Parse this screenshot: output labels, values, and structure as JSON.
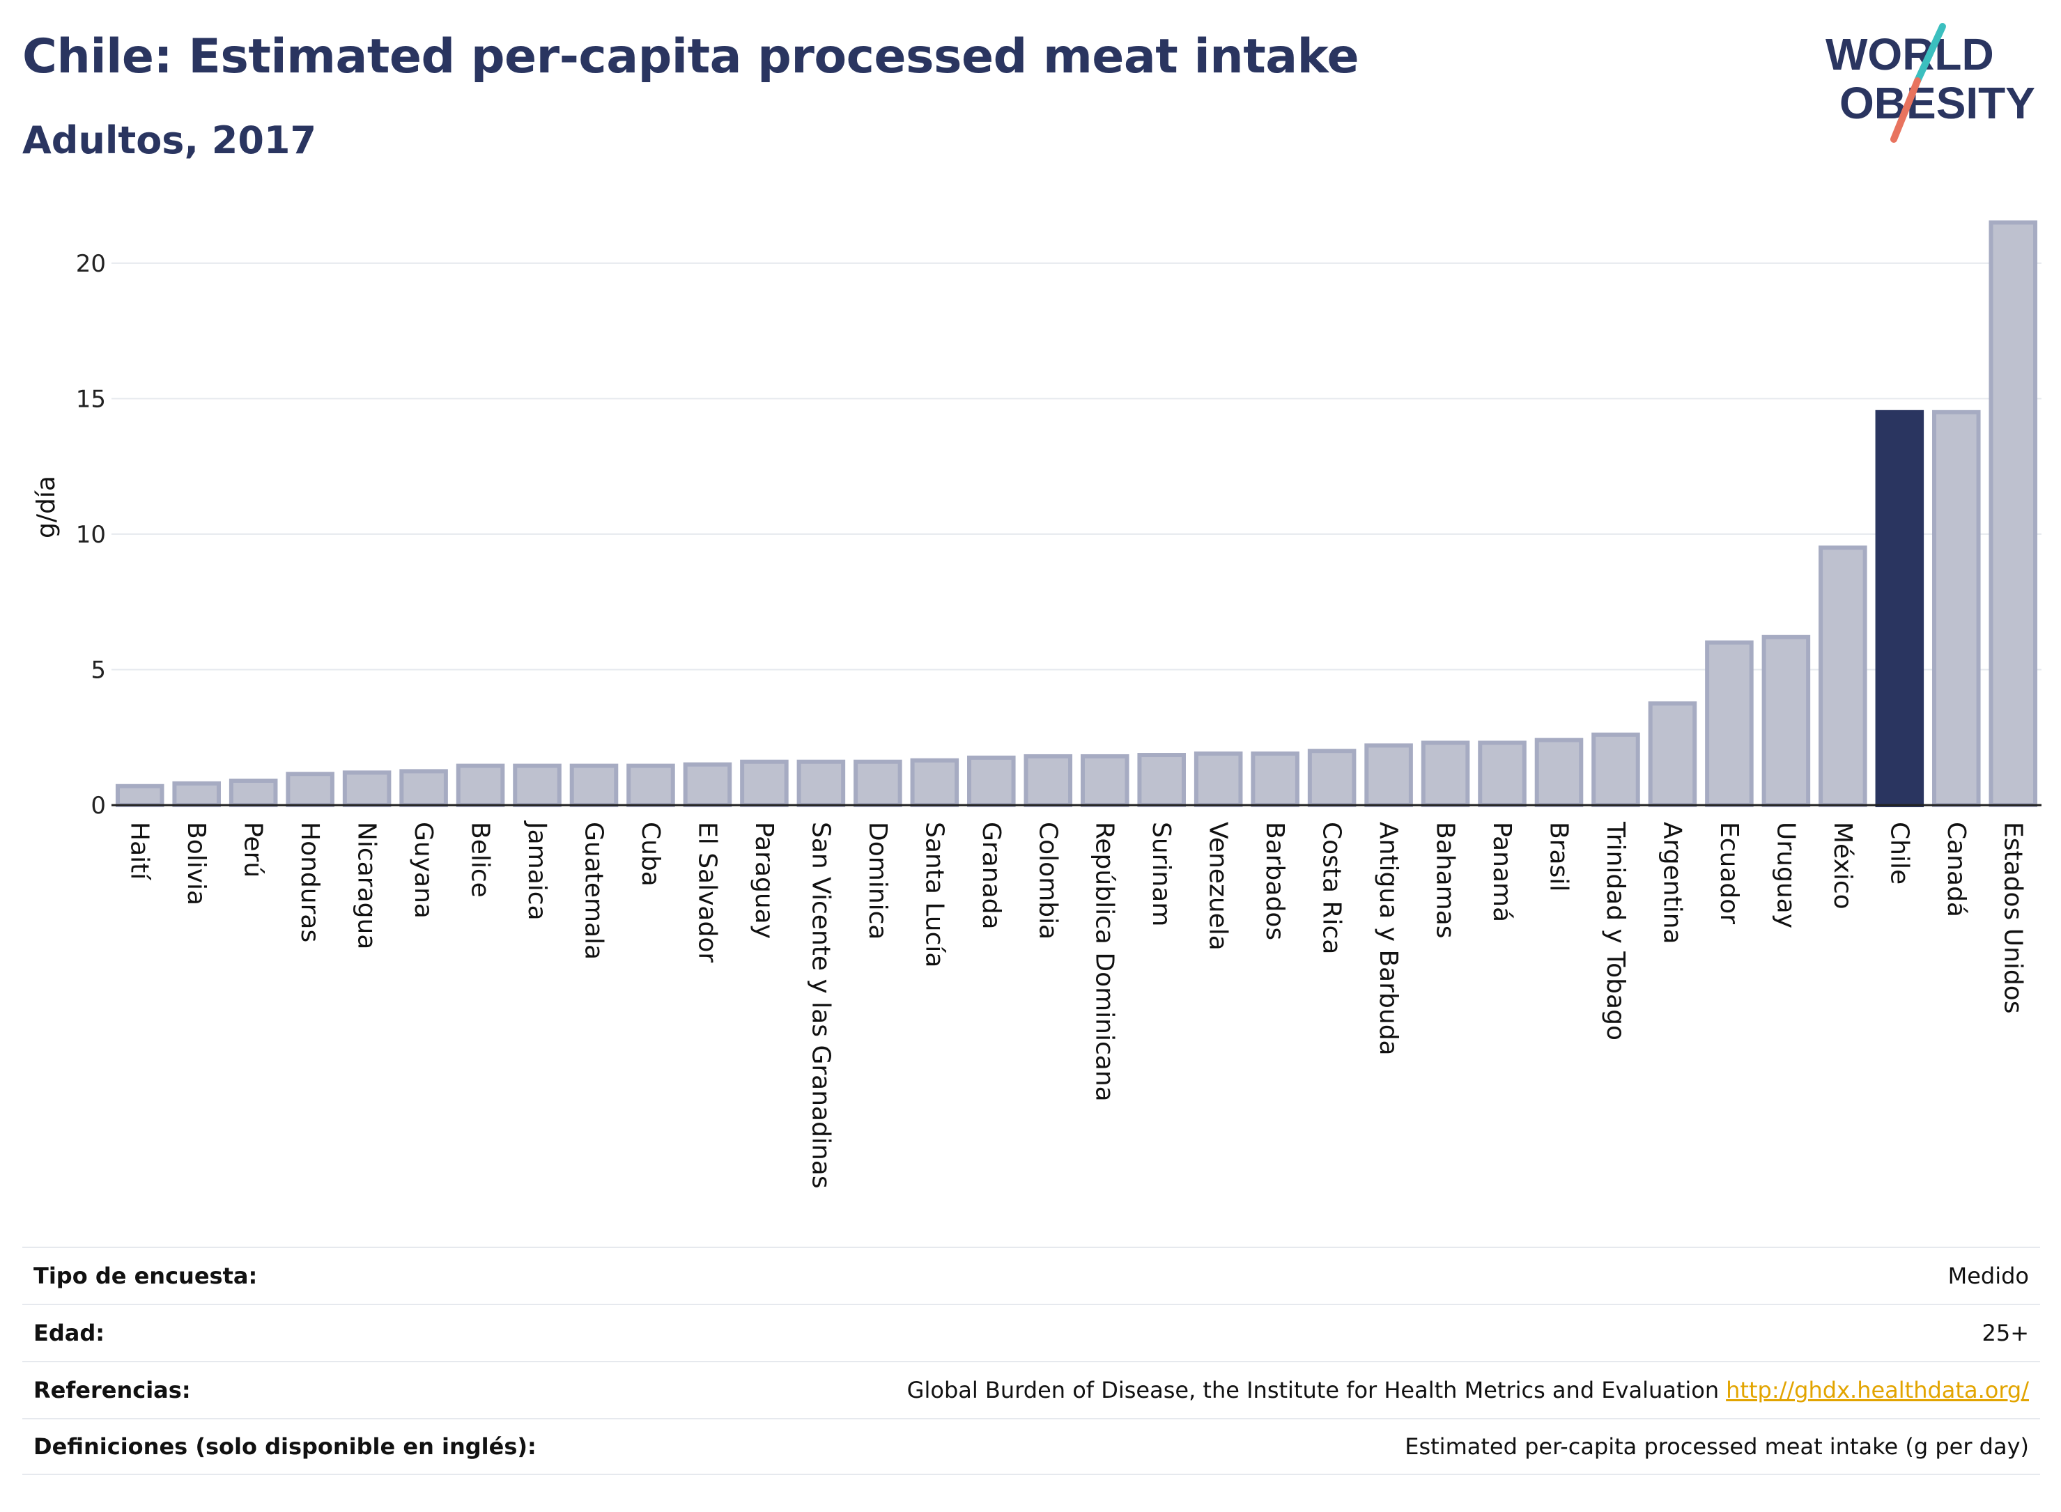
{
  "header": {
    "title": "Chile: Estimated per-capita processed meat intake",
    "subtitle": "Adultos, 2017"
  },
  "logo": {
    "line1": "WORLD",
    "line2": "OBESITY"
  },
  "colors": {
    "bar": "#bec1cf",
    "bar_border": "#a6abc2",
    "highlight": "#2a3560",
    "grid": "#e6e9ee"
  },
  "chart_data": {
    "type": "bar",
    "title": "Chile: Estimated per-capita processed meat intake",
    "subtitle": "Adultos, 2017",
    "ylabel": "g/día",
    "xlabel": "",
    "ylim": [
      0,
      22
    ],
    "yticks": [
      0,
      5,
      10,
      15,
      20
    ],
    "grid": true,
    "highlight": "Chile",
    "categories": [
      "Haití",
      "Bolivia",
      "Perú",
      "Honduras",
      "Nicaragua",
      "Guyana",
      "Belice",
      "Jamaica",
      "Guatemala",
      "Cuba",
      "El Salvador",
      "Paraguay",
      "San Vicente y las Granadinas",
      "Dominica",
      "Santa Lucía",
      "Granada",
      "Colombia",
      "República Dominicana",
      "Surinam",
      "Venezuela",
      "Barbados",
      "Costa Rica",
      "Antigua y Barbuda",
      "Bahamas",
      "Panamá",
      "Brasil",
      "Trinidad y Tobago",
      "Argentina",
      "Ecuador",
      "Uruguay",
      "México",
      "Chile",
      "Canadá",
      "Estados Unidos"
    ],
    "values": [
      0.7,
      0.8,
      0.9,
      1.15,
      1.2,
      1.25,
      1.45,
      1.45,
      1.45,
      1.45,
      1.5,
      1.6,
      1.6,
      1.6,
      1.65,
      1.75,
      1.8,
      1.8,
      1.85,
      1.9,
      1.9,
      2.0,
      2.2,
      2.3,
      2.3,
      2.4,
      2.6,
      3.75,
      6.0,
      6.2,
      9.5,
      14.5,
      14.5,
      21.5
    ]
  },
  "footer": {
    "rows": [
      {
        "key": "Tipo de encuesta:",
        "value": "Medido"
      },
      {
        "key": "Edad:",
        "value": "25+"
      },
      {
        "key": "Referencias:",
        "value": "Global Burden of Disease, the Institute for Health Metrics and Evaluation",
        "link": "http://ghdx.healthdata.org/"
      },
      {
        "key": "Definiciones (solo disponible en inglés):",
        "value": "Estimated per-capita processed meat intake (g per day)"
      }
    ]
  }
}
